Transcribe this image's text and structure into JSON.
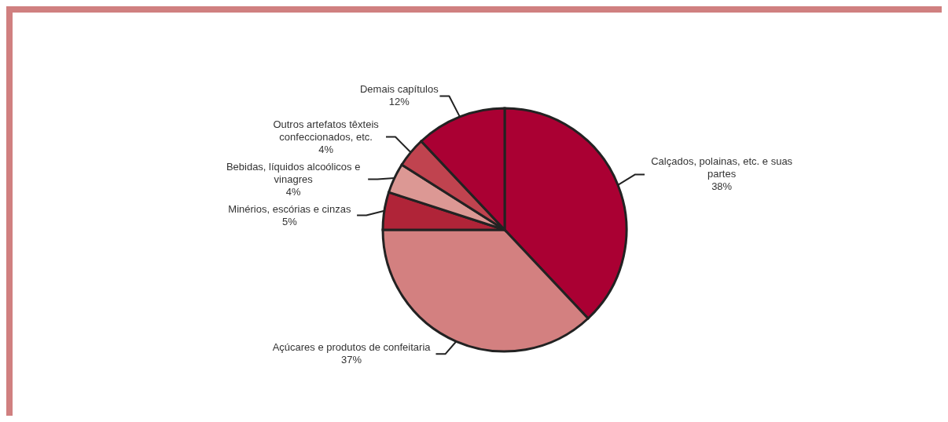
{
  "chart_data": {
    "type": "pie",
    "categories": [
      "Calçados, polainas, etc. e suas partes",
      "Açúcares e produtos de confeitaria",
      "Minérios, escórias e cinzas",
      "Bebidas, líquidos alcoólicos e vinagres",
      "Outros artefatos têxteis confeccionados, etc.",
      "Demais capítulos"
    ],
    "values": [
      38,
      37,
      5,
      4,
      4,
      12
    ],
    "value_labels": [
      "38%",
      "37%",
      "5%",
      "4%",
      "4%",
      "12%"
    ],
    "colors": [
      "#aa0033",
      "#d38080",
      "#b02438",
      "#dc9894",
      "#c0434f",
      "#aa0033"
    ]
  }
}
